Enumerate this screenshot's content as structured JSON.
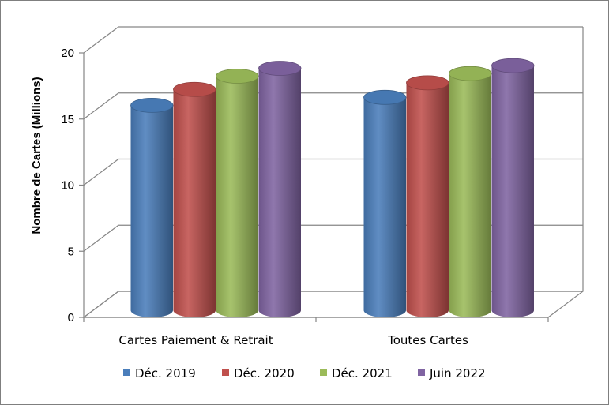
{
  "chart_data": {
    "type": "bar",
    "style": "3d-cylinder",
    "title": "",
    "xlabel": "",
    "ylabel": "Nombre de Cartes (Millions)",
    "ylim": [
      0,
      20
    ],
    "yticks": [
      "0",
      "5",
      "10",
      "15",
      "20"
    ],
    "grid": true,
    "legend_position": "bottom",
    "categories": [
      "Cartes Paiement & Retrait",
      "Toutes Cartes"
    ],
    "series": [
      {
        "name": "Déc. 2019",
        "color": "#4a7ebb",
        "values": [
          15.5,
          16.1
        ]
      },
      {
        "name": "Déc. 2020",
        "color": "#c0504d",
        "values": [
          16.7,
          17.2
        ]
      },
      {
        "name": "Déc. 2021",
        "color": "#9bbb59",
        "values": [
          17.7,
          17.9
        ]
      },
      {
        "name": "Juin 2022",
        "color": "#8064a2",
        "values": [
          18.3,
          18.5
        ]
      }
    ]
  }
}
